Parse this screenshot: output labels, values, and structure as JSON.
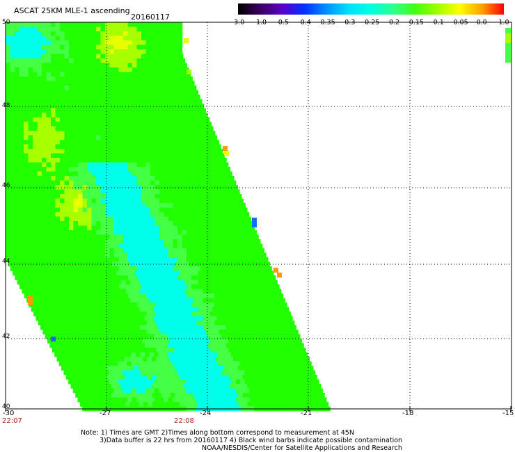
{
  "header": {
    "title": "ASCAT 25KM MLE-1 ascending",
    "date": "20160117"
  },
  "colorbar": {
    "labels": [
      "-3.0",
      "-1.0",
      "-0.5",
      "-0.4",
      "-0.35",
      "-0.3",
      "-0.25",
      "-0.2",
      "-0.15",
      "-0.1",
      "-0.05",
      "0.0",
      "1.0"
    ],
    "colors": [
      "#000000",
      "#3a0060",
      "#5a00c8",
      "#0030ff",
      "#0090ff",
      "#00e0ff",
      "#00ffe0",
      "#30ff90",
      "#40ff10",
      "#a0ff00",
      "#ffff00",
      "#ffa000",
      "#ff0000"
    ]
  },
  "axes": {
    "x_ticks": [
      "-30",
      "-27",
      "-24",
      "-21",
      "-18",
      "-15"
    ],
    "y_ticks": [
      "50",
      "48",
      "46",
      "44",
      "42",
      "40"
    ],
    "lon_range": [
      -30,
      -15
    ],
    "lat_range": [
      40,
      50
    ]
  },
  "times": {
    "left": "22:07",
    "mid": "22:08"
  },
  "notes": {
    "line1": "Note: 1) Times are GMT 2)Times along bottom correspond to measurement at 45N",
    "line2": "3)Data buffer is 22 hrs from 20160117 4) Black wind barbs indicate possible contamination",
    "line3": "NOAA/NESDIS/Center for Satellite Applications and Research"
  },
  "map_colors": {
    "cyan": "#00ffea",
    "light_green": "#44ff44",
    "green": "#22ff00",
    "yellow_green": "#a8ff00",
    "yellow": "#e8ff00",
    "orange": "#ff9a00",
    "blue": "#1070ff",
    "grid": "#000000"
  }
}
